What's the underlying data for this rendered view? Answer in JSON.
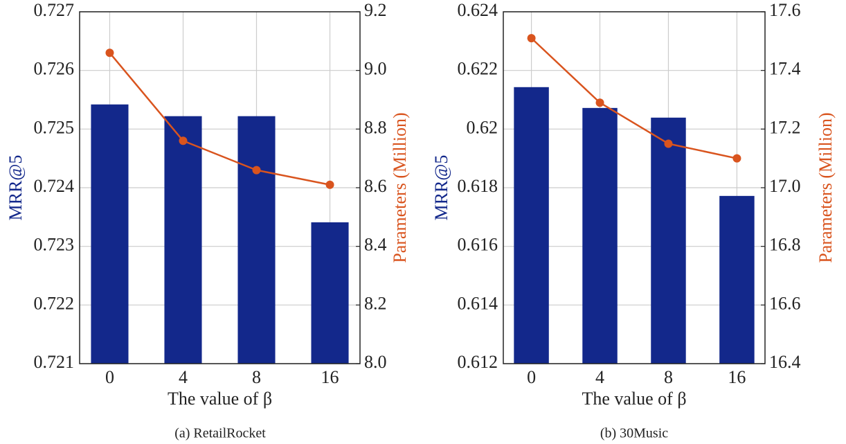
{
  "chart_data": [
    {
      "type": "bar_line",
      "caption": "(a) RetailRocket",
      "xlabel": "The value of β",
      "ylabel": "MRR@5",
      "y2label": "Parameters (Million)",
      "categories": [
        "0",
        "4",
        "8",
        "16"
      ],
      "series": [
        {
          "color": "#13288b",
          "values": [
            0.72542,
            0.72522,
            0.72522,
            0.72341
          ],
          "axis": "y"
        },
        {
          "color": "#d9541e",
          "values": [
            9.06,
            8.76,
            8.66,
            8.61
          ],
          "axis": "y2"
        }
      ],
      "ylim": [
        0.721,
        0.727
      ],
      "yticks": [
        0.721,
        0.722,
        0.723,
        0.724,
        0.725,
        0.726,
        0.727
      ],
      "y2lim": [
        8.0,
        9.2
      ],
      "y2ticks": [
        {
          "value": 8.0,
          "label": "8.0"
        },
        8.2,
        8.4,
        8.6,
        8.8,
        {
          "value": 9.0,
          "label": "9.0"
        },
        9.2
      ],
      "grid": true
    },
    {
      "type": "bar_line",
      "caption": "(b) 30Music",
      "xlabel": "The value of β",
      "ylabel": "MRR@5",
      "y2label": "Parameters (Million)",
      "categories": [
        "0",
        "4",
        "8",
        "16"
      ],
      "series": [
        {
          "color": "#13288b",
          "values": [
            0.62143,
            0.62072,
            0.62039,
            0.61772
          ],
          "axis": "y"
        },
        {
          "color": "#d9541e",
          "values": [
            17.51,
            17.29,
            17.15,
            17.1
          ],
          "axis": "y2"
        }
      ],
      "ylim": [
        0.612,
        0.624
      ],
      "yticks": [
        0.612,
        0.614,
        0.616,
        0.618,
        0.62,
        0.622,
        0.624
      ],
      "y2lim": [
        16.4,
        17.6
      ],
      "y2ticks": [
        16.4,
        16.6,
        16.8,
        {
          "value": 17.0,
          "label": "17.0"
        },
        17.2,
        17.4,
        17.6
      ],
      "grid": true
    }
  ]
}
